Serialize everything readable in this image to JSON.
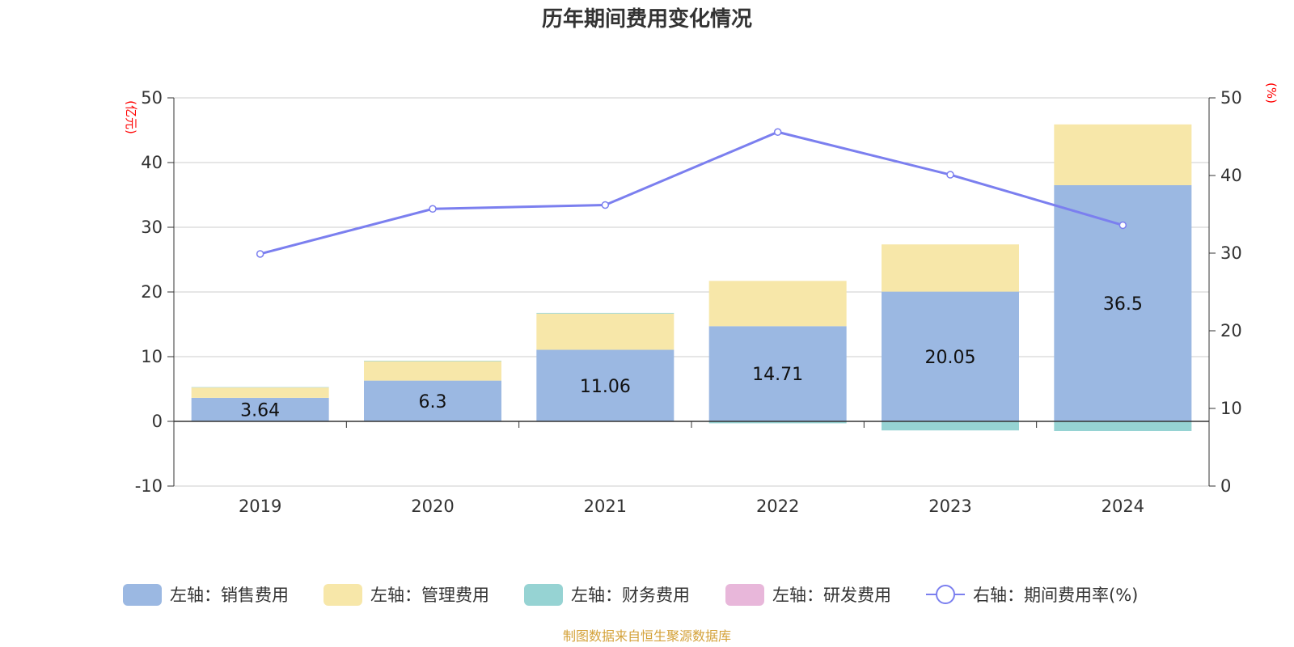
{
  "chart_data": {
    "type": "bar",
    "title": "历年期间费用变化情况",
    "categories": [
      "2019",
      "2020",
      "2021",
      "2022",
      "2023",
      "2024"
    ],
    "left_axis": {
      "unit": "(亿元)",
      "ylim": [
        -10,
        50
      ],
      "ticks": [
        50,
        40,
        30,
        20,
        10,
        0,
        -10
      ]
    },
    "right_axis": {
      "unit": "(%)",
      "ylim": [
        0,
        50
      ],
      "ticks": [
        50,
        40,
        30,
        20,
        10,
        0
      ]
    },
    "series": [
      {
        "name": "左轴：销售费用",
        "kind": "bar",
        "axis": "left",
        "color": "#9bb8e2",
        "values": [
          3.64,
          6.3,
          11.06,
          14.71,
          20.05,
          36.5
        ],
        "labels": [
          "3.64",
          "6.3",
          "11.06",
          "14.71",
          "20.05",
          "36.5"
        ]
      },
      {
        "name": "左轴：管理费用",
        "kind": "bar",
        "axis": "left",
        "color": "#f7e7a9",
        "values": [
          1.6,
          3.0,
          5.6,
          7.0,
          7.3,
          9.4
        ]
      },
      {
        "name": "左轴：财务费用",
        "kind": "bar",
        "axis": "left",
        "color": "#96d3d3",
        "values": [
          0.05,
          0.08,
          0.1,
          -0.3,
          -1.4,
          -1.5
        ]
      },
      {
        "name": "左轴：研发费用",
        "kind": "bar",
        "axis": "left",
        "color": "#e8b7da",
        "values": [
          0,
          0,
          0,
          0,
          0,
          0
        ]
      },
      {
        "name": "右轴：期间费用率(%)",
        "kind": "line",
        "axis": "right",
        "color": "#7b7fef",
        "values": [
          29.9,
          35.7,
          36.2,
          45.6,
          40.1,
          33.6
        ]
      }
    ]
  },
  "source": {
    "text": "制图数据来自恒生聚源数据库",
    "color": "#d4a23a"
  }
}
